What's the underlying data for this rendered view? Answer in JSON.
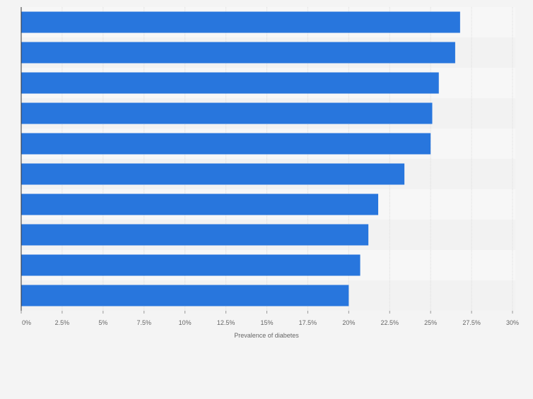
{
  "chart_data": {
    "type": "bar",
    "orientation": "horizontal",
    "title": "",
    "xlabel": "Prevalence of diabetes",
    "ylabel": "",
    "xlim": [
      0,
      30
    ],
    "x_ticks": [
      0,
      2.5,
      5,
      7.5,
      10,
      12.5,
      15,
      17.5,
      20,
      22.5,
      25,
      27.5,
      30
    ],
    "x_tick_labels": [
      "0%",
      "2.5%",
      "5%",
      "7.5%",
      "10%",
      "12.5%",
      "15%",
      "17.5%",
      "20%",
      "22.5%",
      "25%",
      "27.5%",
      "30%"
    ],
    "categories": [
      "",
      "",
      "",
      "",
      "",
      "",
      "",
      "",
      "",
      ""
    ],
    "values": [
      26.8,
      26.5,
      25.5,
      25.1,
      25.0,
      23.4,
      21.8,
      21.2,
      20.7,
      20.0
    ],
    "grid": "vertical",
    "legend": "none",
    "bar_color": "#2876dd"
  }
}
